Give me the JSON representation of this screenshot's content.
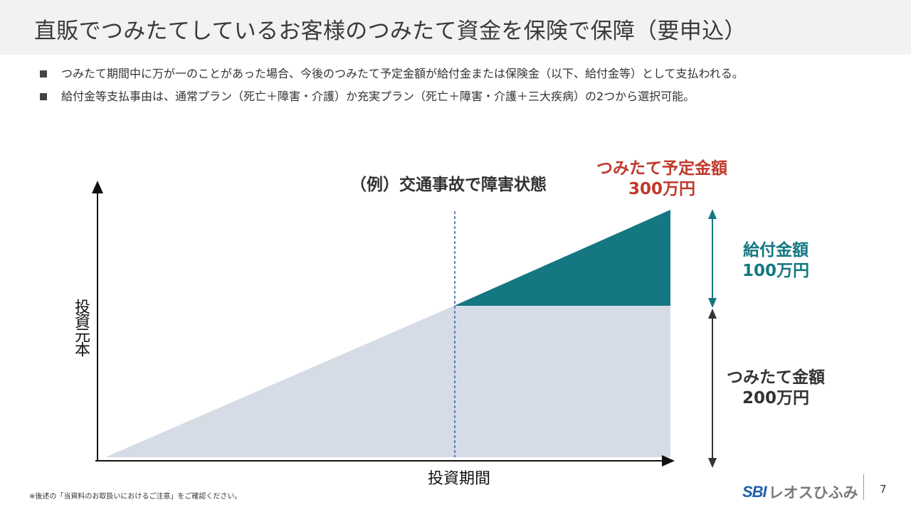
{
  "header": {
    "title": "直販でつみたてしているお客様のつみたて資金を保険で保障（要申込）"
  },
  "bullets": [
    "つみたて期間中に万が一のことがあった場合、今後のつみたて予定金額が給付金または保険金（以下、給付金等）として支払われる。",
    "給付金等支払事由は、通常プラン（死亡＋障害・介護）か充実プラン（死亡＋障害・介護＋三大疾病）の2つから選択可能。"
  ],
  "diagram": {
    "event_label": "（例）交通事故で障害状態",
    "planned_label_line1": "つみたて予定金額",
    "planned_label_line2": "300万円",
    "benefit_label_line1": "給付金額",
    "benefit_label_line2": "100万円",
    "savings_label_line1": "つみたて金額",
    "savings_label_line2": "200万円",
    "y_axis_label": "投資元本",
    "x_axis_label": "投資期間",
    "colors": {
      "savings_fill": "#d6dce6",
      "benefit_fill": "#147782",
      "event_line": "#2b5fa8",
      "planned_text": "#c0392b",
      "benefit_text": "#147782",
      "arrow_teal": "#147782",
      "arrow_dark": "#333333",
      "axis": "#111111"
    }
  },
  "footer": {
    "footnote": "※後述の「当資料のお取扱いにおけるご注意」をご確認ください。",
    "logo_mark": "SBI",
    "logo_text": "レオスひふみ",
    "page_number": "7"
  }
}
